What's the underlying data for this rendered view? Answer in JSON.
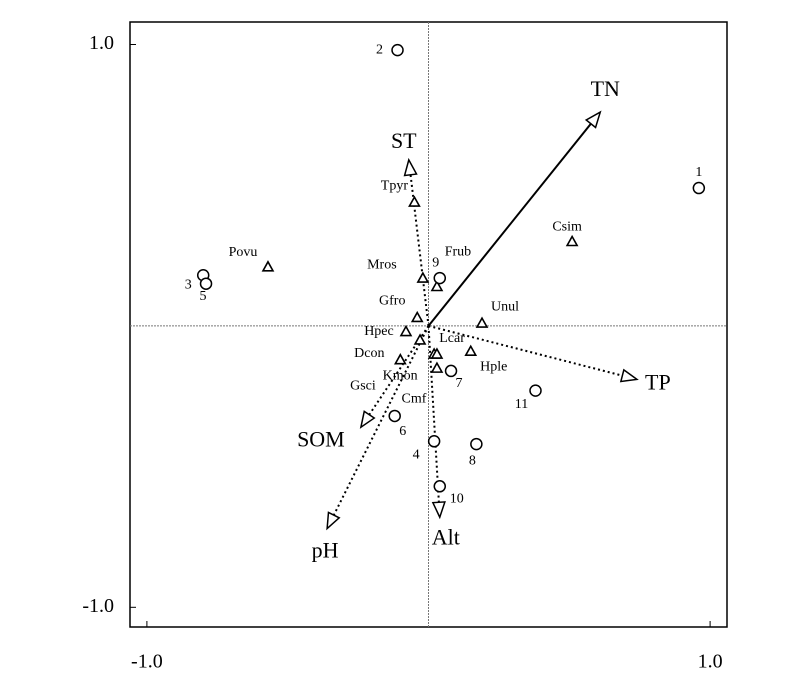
{
  "chart_data": {
    "type": "biplot",
    "xlim": [
      -1.06,
      1.06
    ],
    "ylim": [
      -1.07,
      1.08
    ],
    "xticks": [
      {
        "value": -1,
        "label": "-1.0"
      },
      {
        "value": 1,
        "label": "1.0"
      }
    ],
    "yticks": [
      {
        "value": -1,
        "label": "-1.0"
      },
      {
        "value": 1,
        "label": "1.0"
      }
    ],
    "zero_lines": true,
    "color": "#000000",
    "sites": {
      "labels": [
        "1",
        "2",
        "3",
        "5",
        "9",
        "7",
        "11",
        "6",
        "4",
        "8",
        "10"
      ],
      "x": [
        0.96,
        -0.11,
        -0.8,
        -0.79,
        0.04,
        0.08,
        0.38,
        -0.12,
        0.02,
        0.17,
        0.04
      ],
      "y": [
        0.49,
        0.98,
        0.18,
        0.15,
        0.17,
        -0.16,
        -0.23,
        -0.32,
        -0.41,
        -0.42,
        -0.57
      ]
    },
    "species": {
      "labels": [
        "Tpyr",
        "Csim",
        "Povu",
        "Mros",
        "Frub",
        "Gfro",
        "Unul",
        "Hpec",
        "Lcar",
        "Dcon",
        "Kmon",
        "Gsci",
        "Cmf",
        "Hple"
      ],
      "x": [
        -0.05,
        0.51,
        -0.57,
        -0.02,
        0.03,
        -0.04,
        0.19,
        -0.08,
        -0.03,
        -0.1,
        0.02,
        0.03,
        0.03,
        0.15
      ],
      "y": [
        0.44,
        0.3,
        0.21,
        0.17,
        0.14,
        0.03,
        0.01,
        -0.02,
        -0.05,
        -0.12,
        -0.1,
        -0.1,
        -0.15,
        -0.09
      ]
    },
    "arrows": {
      "labels": [
        "TN",
        "ST",
        "TP",
        "SOM",
        "pH",
        "Alt"
      ],
      "x": [
        0.61,
        -0.07,
        0.74,
        -0.24,
        -0.36,
        0.04
      ],
      "y": [
        0.76,
        0.59,
        -0.19,
        -0.36,
        -0.72,
        -0.68
      ],
      "line_styles": [
        "solid",
        "dotted",
        "dotted",
        "dotted",
        "dotted",
        "dotted"
      ]
    }
  }
}
